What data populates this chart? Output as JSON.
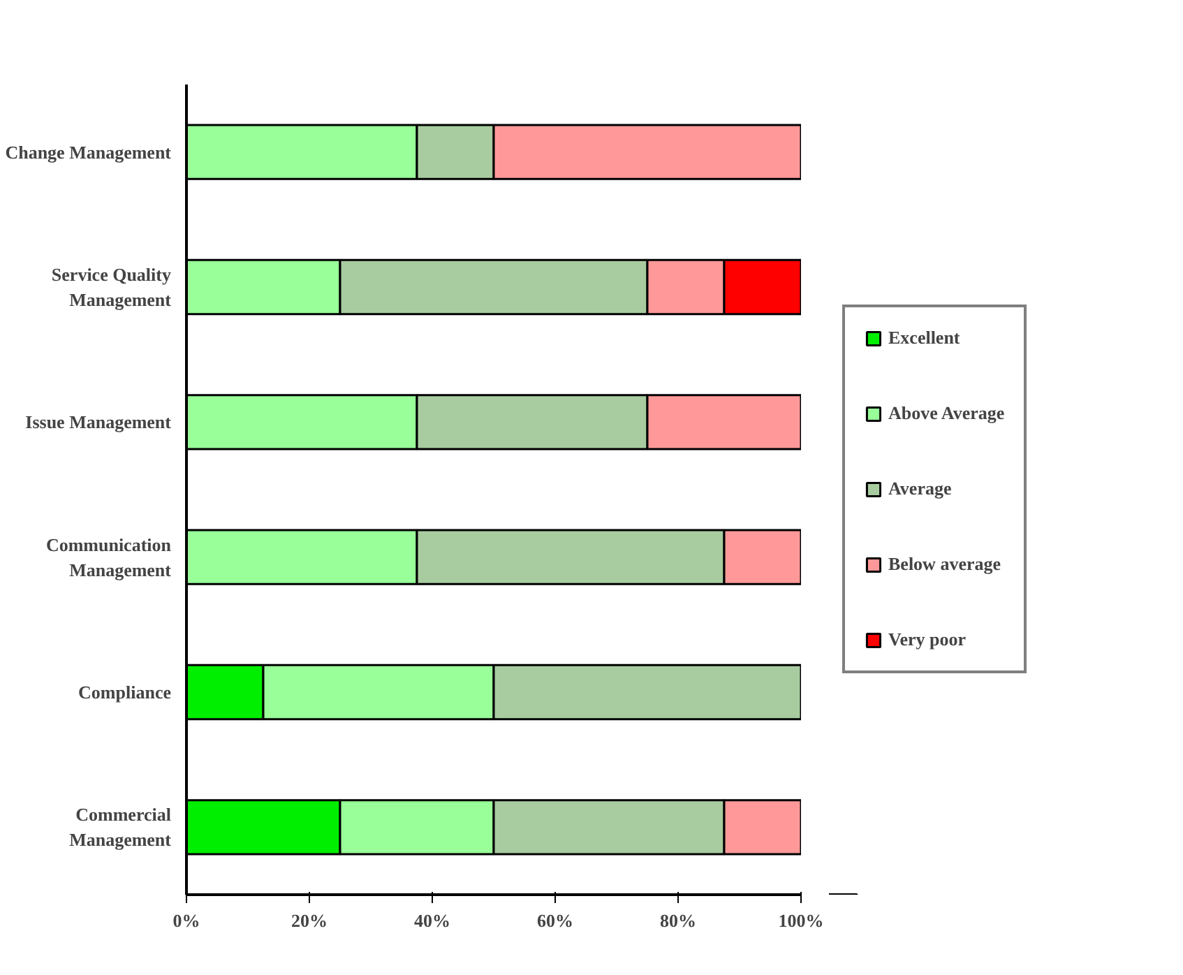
{
  "chart_data": {
    "type": "bar",
    "orientation": "horizontal",
    "stacked": true,
    "categories": [
      "Change Management",
      "Service Quality Management",
      "Issue Management",
      "Communication Management",
      "Compliance",
      "Commercial Management"
    ],
    "series": [
      {
        "name": "Excellent",
        "color": "#00ee00",
        "values": [
          0,
          0,
          0,
          0,
          12.5,
          25
        ]
      },
      {
        "name": "Above Average",
        "color": "#99ff99",
        "values": [
          37.5,
          25,
          37.5,
          37.5,
          37.5,
          25
        ]
      },
      {
        "name": "Average",
        "color": "#a8cca0",
        "values": [
          12.5,
          50,
          37.5,
          50,
          50,
          37.5
        ]
      },
      {
        "name": "Below average",
        "color": "#ff9999",
        "values": [
          50,
          12.5,
          25,
          12.5,
          0,
          12.5
        ]
      },
      {
        "name": "Very poor",
        "color": "#ff0000",
        "values": [
          0,
          12.5,
          0,
          0,
          0,
          0
        ]
      }
    ],
    "xlim": [
      0,
      100
    ],
    "xticks": [
      {
        "value": 0,
        "label": "0%"
      },
      {
        "value": 20,
        "label": "20%"
      },
      {
        "value": 40,
        "label": "40%"
      },
      {
        "value": 60,
        "label": "60%"
      },
      {
        "value": 80,
        "label": "80%"
      },
      {
        "value": 100,
        "label": "100%"
      }
    ],
    "grid": false,
    "legend": "right"
  }
}
